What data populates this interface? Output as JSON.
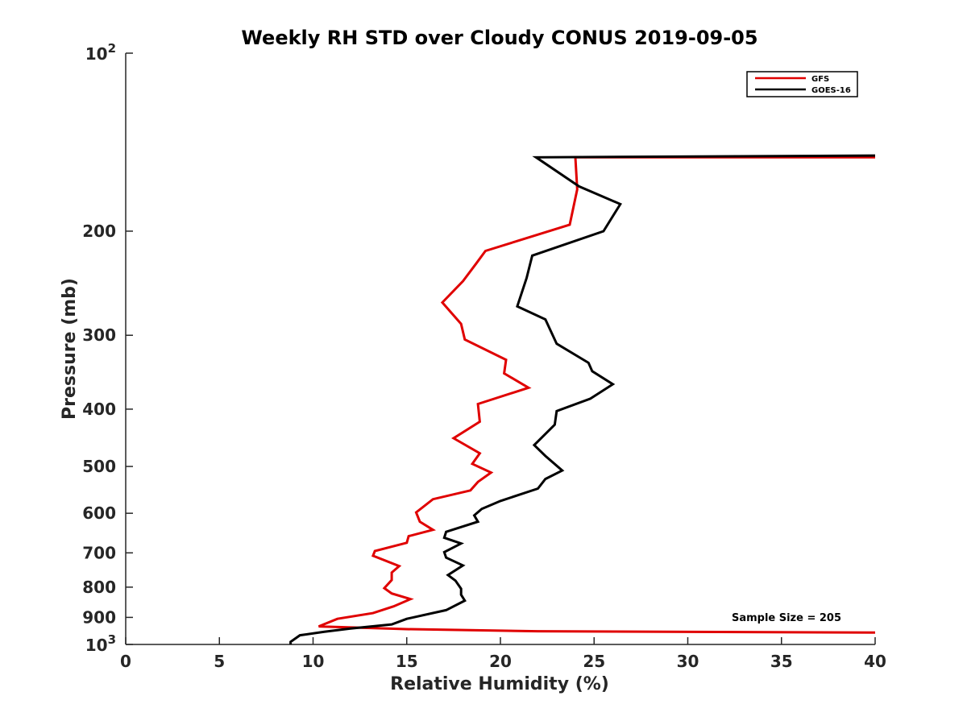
{
  "chart_data": {
    "type": "line",
    "title": "Weekly RH STD over Cloudy CONUS 2019-09-05",
    "xlabel": "Relative Humidity (%)",
    "ylabel": "Pressure (mb)",
    "xlim": [
      0,
      40
    ],
    "ylim": [
      100,
      1000
    ],
    "yscale": "log",
    "y_reversed": true,
    "x_ticks": [
      0,
      5,
      10,
      15,
      20,
      25,
      30,
      35,
      40
    ],
    "y_ticks": [
      200,
      300,
      400,
      500,
      600,
      700,
      800,
      900
    ],
    "y_tick_labels": [
      "200",
      "300",
      "400",
      "500",
      "600",
      "700",
      "800",
      "900"
    ],
    "y_power_ticks": [
      {
        "value": 100,
        "base": "10",
        "exp": "2"
      },
      {
        "value": 1000,
        "base": "10",
        "exp": "3"
      }
    ],
    "grid": false,
    "legend_position": "top-right",
    "annotation": "Sample Size = 205",
    "series": [
      {
        "name": "GFS",
        "color": "#e00000",
        "points": [
          [
            40,
            150
          ],
          [
            24.0,
            150
          ],
          [
            24.1,
            170
          ],
          [
            23.7,
            195
          ],
          [
            19.2,
            216
          ],
          [
            18.7,
            227
          ],
          [
            18.0,
            243
          ],
          [
            16.9,
            264
          ],
          [
            17.9,
            287
          ],
          [
            18.1,
            305
          ],
          [
            20.3,
            330
          ],
          [
            20.2,
            348
          ],
          [
            21.5,
            368
          ],
          [
            18.8,
            392
          ],
          [
            18.9,
            420
          ],
          [
            17.5,
            448
          ],
          [
            18.9,
            475
          ],
          [
            18.5,
            495
          ],
          [
            19.5,
            512
          ],
          [
            18.8,
            531
          ],
          [
            18.4,
            549
          ],
          [
            16.4,
            568
          ],
          [
            15.5,
            598
          ],
          [
            15.7,
            620
          ],
          [
            16.4,
            640
          ],
          [
            15.1,
            656
          ],
          [
            15.0,
            673
          ],
          [
            13.3,
            695
          ],
          [
            13.2,
            708
          ],
          [
            14.6,
            737
          ],
          [
            14.2,
            756
          ],
          [
            14.2,
            778
          ],
          [
            13.8,
            803
          ],
          [
            14.2,
            820
          ],
          [
            15.2,
            838
          ],
          [
            14.3,
            862
          ],
          [
            13.2,
            885
          ],
          [
            11.3,
            905
          ],
          [
            10.3,
            932
          ],
          [
            15.0,
            942
          ],
          [
            22.0,
            950
          ],
          [
            40,
            955
          ]
        ]
      },
      {
        "name": "GOES-16",
        "color": "#000000",
        "points": [
          [
            40,
            149
          ],
          [
            21.9,
            150
          ],
          [
            24.2,
            168
          ],
          [
            26.4,
            180
          ],
          [
            25.5,
            200
          ],
          [
            21.7,
            220
          ],
          [
            21.4,
            240
          ],
          [
            20.9,
            268
          ],
          [
            22.4,
            282
          ],
          [
            23.0,
            310
          ],
          [
            24.7,
            334
          ],
          [
            24.9,
            345
          ],
          [
            26.0,
            363
          ],
          [
            24.8,
            384
          ],
          [
            23.0,
            403
          ],
          [
            22.9,
            425
          ],
          [
            21.8,
            460
          ],
          [
            22.4,
            480
          ],
          [
            23.3,
            508
          ],
          [
            22.4,
            525
          ],
          [
            22.0,
            545
          ],
          [
            20.0,
            572
          ],
          [
            19.0,
            590
          ],
          [
            18.6,
            605
          ],
          [
            18.8,
            620
          ],
          [
            17.1,
            645
          ],
          [
            17.0,
            660
          ],
          [
            17.9,
            675
          ],
          [
            17.0,
            698
          ],
          [
            17.1,
            713
          ],
          [
            18.0,
            735
          ],
          [
            17.2,
            763
          ],
          [
            17.6,
            780
          ],
          [
            17.9,
            805
          ],
          [
            17.9,
            824
          ],
          [
            18.1,
            843
          ],
          [
            17.1,
            875
          ],
          [
            15.0,
            905
          ],
          [
            14.2,
            925
          ],
          [
            12.0,
            940
          ],
          [
            10.6,
            952
          ],
          [
            9.3,
            965
          ],
          [
            8.8,
            990
          ],
          [
            8.8,
            1000
          ]
        ]
      }
    ]
  }
}
